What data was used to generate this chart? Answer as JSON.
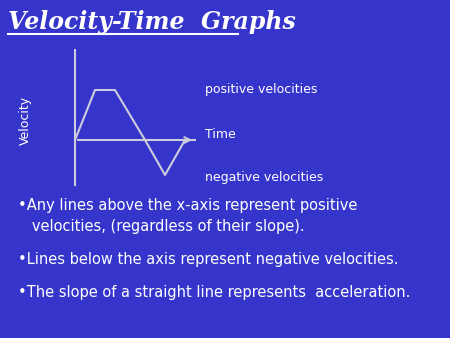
{
  "title": "Velocity-Time  Graphs",
  "background_color": "#3535CC",
  "text_color": "#FFFFFF",
  "title_fontsize": 17,
  "diagram": {
    "axis_color": "#CCCCDD",
    "line_color": "#CCCCDD",
    "velocity_label": "Velocity",
    "time_label": "Time",
    "positive_label": "positive velocities",
    "negative_label": "negative velocities"
  },
  "bullets": [
    "•Any lines above the x-axis represent positive\n   velocities, (regardless of their slope).",
    "•Lines below the axis represent negative velocities.",
    "•The slope of a straight line represents  acceleration."
  ],
  "bullet_fontsize": 10.5
}
